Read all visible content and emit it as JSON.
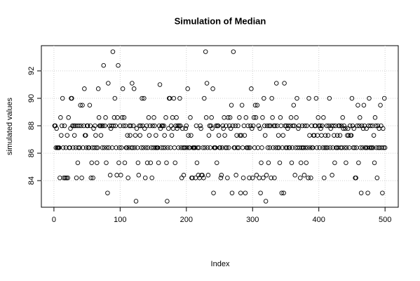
{
  "chart_data": {
    "type": "scatter",
    "title": "Simulation of Median",
    "x_label": "Index",
    "y_label": "simulated values",
    "color": "#000000",
    "grid": true,
    "xlim": [
      -18.96,
      519.96
    ],
    "xticks": [
      0,
      100,
      200,
      300,
      400,
      500
    ],
    "ylim": [
      82.06,
      93.84
    ],
    "yticks": [
      84,
      86,
      88,
      90,
      92
    ],
    "values": [
      88.0,
      88.0,
      86.4,
      87.8,
      86.4,
      86.4,
      86.4,
      86.4,
      84.2,
      88.6,
      87.3,
      88.0,
      90.0,
      86.4,
      84.2,
      88.0,
      84.2,
      86.4,
      84.2,
      87.3,
      84.2,
      88.6,
      86.4,
      86.4,
      87.8,
      90.0,
      90.0,
      88.0,
      86.4,
      88.0,
      87.3,
      88.0,
      86.4,
      84.2,
      88.0,
      85.3,
      86.4,
      88.0,
      86.4,
      89.5,
      88.0,
      84.2,
      89.5,
      86.4,
      88.0,
      90.7,
      87.3,
      87.3,
      86.4,
      88.0,
      88.0,
      86.4,
      86.4,
      89.5,
      88.0,
      84.2,
      85.3,
      86.4,
      84.2,
      87.8,
      86.4,
      88.0,
      87.3,
      86.4,
      85.3,
      86.4,
      90.7,
      88.6,
      88.0,
      88.0,
      87.3,
      88.0,
      86.4,
      88.0,
      92.4,
      86.4,
      88.0,
      88.6,
      85.3,
      86.4,
      83.1,
      91.1,
      86.4,
      88.0,
      84.4,
      87.8,
      88.0,
      86.4,
      93.4,
      88.0,
      88.6,
      90.0,
      88.0,
      86.4,
      84.4,
      88.6,
      92.4,
      85.3,
      86.4,
      88.0,
      84.4,
      86.4,
      88.6,
      90.7,
      88.0,
      88.6,
      85.3,
      88.0,
      86.4,
      86.4,
      87.3,
      84.2,
      86.4,
      88.0,
      87.3,
      88.0,
      86.4,
      91.1,
      86.4,
      88.0,
      90.7,
      86.4,
      87.3,
      82.5,
      87.8,
      86.4,
      85.3,
      84.4,
      88.0,
      87.3,
      88.0,
      86.4,
      90.0,
      88.0,
      86.4,
      90.0,
      87.8,
      84.2,
      86.4,
      88.0,
      85.3,
      86.4,
      88.6,
      87.3,
      88.0,
      85.3,
      86.4,
      84.2,
      88.0,
      86.4,
      88.6,
      88.0,
      86.4,
      87.3,
      86.4,
      86.4,
      86.4,
      85.3,
      88.0,
      91.0,
      87.8,
      86.4,
      88.0,
      88.0,
      86.4,
      88.0,
      87.3,
      86.4,
      88.6,
      85.3,
      82.5,
      86.4,
      87.8,
      90.0,
      90.0,
      86.4,
      88.0,
      87.3,
      88.6,
      87.8,
      90.0,
      86.4,
      85.3,
      88.0,
      88.6,
      87.8,
      88.0,
      86.4,
      88.0,
      90.0,
      88.0,
      86.4,
      84.2,
      87.8,
      86.4,
      84.4,
      86.4,
      86.4,
      87.8,
      88.0,
      86.4,
      90.7,
      87.3,
      86.4,
      86.4,
      88.6,
      87.3,
      84.2,
      84.2,
      86.4,
      86.4,
      86.4,
      86.4,
      84.2,
      88.0,
      85.3,
      86.4,
      84.4,
      86.4,
      84.2,
      88.0,
      87.8,
      84.4,
      84.4,
      86.4,
      84.2,
      90.0,
      86.4,
      93.4,
      88.6,
      91.1,
      86.4,
      84.4,
      87.3,
      88.0,
      86.4,
      88.0,
      88.6,
      87.8,
      90.7,
      83.1,
      86.4,
      86.4,
      86.4,
      88.0,
      85.3,
      88.0,
      88.0,
      87.3,
      86.4,
      86.4,
      84.2,
      84.4,
      86.4,
      88.0,
      87.8,
      88.6,
      87.3,
      86.4,
      88.0,
      86.4,
      84.2,
      88.6,
      86.4,
      88.0,
      88.6,
      87.8,
      89.5,
      83.1,
      88.0,
      93.4,
      86.4,
      86.4,
      88.0,
      84.4,
      87.3,
      86.4,
      88.0,
      86.4,
      88.6,
      87.3,
      83.1,
      87.3,
      89.5,
      86.4,
      84.2,
      88.0,
      87.3,
      83.1,
      88.6,
      86.4,
      86.4,
      88.0,
      86.4,
      84.2,
      86.4,
      88.0,
      90.7,
      87.8,
      84.2,
      88.0,
      88.6,
      86.4,
      89.5,
      88.6,
      84.4,
      89.5,
      86.4,
      88.0,
      84.2,
      87.8,
      83.1,
      85.3,
      86.4,
      88.6,
      84.2,
      90.0,
      88.0,
      87.3,
      82.5,
      84.4,
      88.0,
      86.4,
      85.3,
      88.0,
      86.4,
      88.0,
      84.2,
      90.0,
      88.6,
      86.4,
      88.0,
      84.2,
      88.0,
      86.4,
      91.1,
      88.0,
      86.4,
      87.3,
      86.4,
      85.3,
      88.6,
      88.0,
      83.1,
      86.4,
      87.3,
      83.1,
      91.1,
      88.0,
      86.4,
      88.0,
      86.4,
      87.8,
      88.0,
      86.4,
      86.4,
      88.0,
      88.6,
      85.3,
      86.4,
      88.0,
      89.5,
      88.0,
      84.4,
      86.4,
      88.6,
      90.0,
      86.4,
      87.8,
      88.0,
      86.4,
      84.2,
      85.3,
      86.4,
      88.0,
      86.4,
      86.4,
      84.4,
      88.0,
      86.4,
      85.3,
      88.0,
      86.4,
      84.2,
      90.0,
      87.3,
      86.4,
      84.2,
      88.0,
      86.4,
      86.4,
      87.3,
      87.3,
      88.0,
      88.0,
      90.0,
      86.4,
      87.3,
      88.6,
      88.0,
      86.4,
      88.0,
      87.8,
      87.3,
      88.0,
      86.4,
      88.6,
      84.2,
      86.4,
      87.3,
      86.4,
      88.0,
      86.4,
      87.3,
      88.0,
      90.0,
      86.4,
      87.8,
      88.0,
      84.4,
      86.4,
      88.0,
      87.3,
      85.3,
      88.0,
      86.4,
      86.4,
      87.3,
      86.4,
      88.0,
      88.0,
      87.3,
      86.4,
      88.0,
      86.4,
      88.6,
      87.8,
      88.0,
      86.4,
      87.8,
      85.3,
      86.4,
      87.3,
      87.8,
      87.3,
      86.4,
      88.0,
      87.3,
      87.3,
      90.0,
      88.0,
      86.4,
      87.8,
      86.4,
      84.2,
      84.2,
      86.4,
      88.0,
      89.5,
      85.3,
      88.0,
      88.6,
      86.4,
      83.1,
      88.0,
      86.4,
      87.8,
      89.5,
      88.0,
      86.4,
      86.4,
      87.8,
      86.4,
      83.1,
      88.0,
      90.0,
      86.4,
      88.0,
      86.4,
      86.4,
      88.0,
      86.4,
      87.3,
      85.3,
      88.6,
      88.0,
      86.4,
      84.2,
      88.0,
      86.4,
      87.8,
      86.4,
      89.5,
      88.0,
      86.4,
      83.1,
      87.8,
      86.4,
      90.0,
      86.4
    ]
  }
}
